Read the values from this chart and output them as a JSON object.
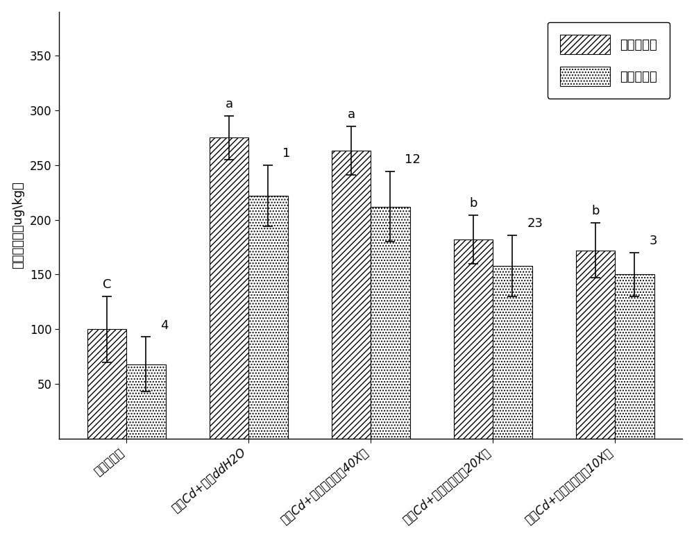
{
  "categories": [
    "未污染土壤",
    "外源Cd+嘱斺ddH2O",
    "外源Cd+嘱施叶面肿（40X）",
    "外源Cd+嘱施叶面肿（20X）",
    "外源Cd+嘱施叶面肿（10X）"
  ],
  "indica_values": [
    100,
    275,
    263,
    182,
    172
  ],
  "japonica_values": [
    68,
    222,
    212,
    158,
    150
  ],
  "indica_errors": [
    30,
    20,
    22,
    22,
    25
  ],
  "japonica_errors": [
    25,
    28,
    32,
    28,
    20
  ],
  "indica_labels": [
    "C",
    "a",
    "a",
    "b",
    "b"
  ],
  "japonica_labels": [
    "4",
    "1",
    "12",
    "23",
    "3"
  ],
  "ylabel": "糙米镞含量（ug\\kg）",
  "ylim": [
    0,
    390
  ],
  "yticks": [
    50,
    100,
    150,
    200,
    250,
    300,
    350
  ],
  "legend_indica": "粘稻镞含量",
  "legend_japonica": "米稻镞含量",
  "bar_width": 0.32,
  "indica_hatch": "////",
  "japonica_hatch": "....",
  "indica_color": "white",
  "japonica_color": "white",
  "edge_color": "black",
  "background_color": "white",
  "label_fontsize": 13,
  "tick_fontsize": 12,
  "annot_fontsize": 13
}
